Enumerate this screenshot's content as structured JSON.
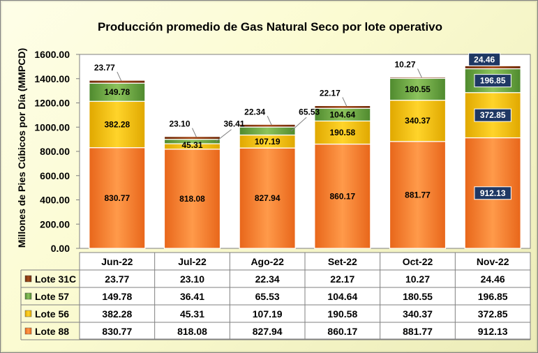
{
  "chart_data": {
    "type": "bar",
    "stacked": true,
    "title": "Producción promedio de Gas Natural Seco por lote operativo",
    "ylabel": "Millones de Pies Cúbicos por Día (MMPCD)",
    "xlabel": "",
    "ylim": [
      0,
      1600
    ],
    "yticks": [
      "0.00",
      "200.00",
      "400.00",
      "600.00",
      "800.00",
      "1000.00",
      "1200.00",
      "1400.00",
      "1600.00"
    ],
    "categories": [
      "Jun-22",
      "Jul-22",
      "Ago-22",
      "Set-22",
      "Oct-22",
      "Nov-22"
    ],
    "series": [
      {
        "name": "Lote 88",
        "color": "#f47f2f",
        "values": [
          830.77,
          818.08,
          827.94,
          860.17,
          881.77,
          912.13
        ],
        "labels": [
          "830.77",
          "818.08",
          "827.94",
          "860.17",
          "881.77",
          "912.13"
        ]
      },
      {
        "name": "Lote 56",
        "color": "#ffc000",
        "values": [
          382.28,
          45.31,
          107.19,
          190.58,
          340.37,
          372.85
        ],
        "labels": [
          "382.28",
          "45.31",
          "107.19",
          "190.58",
          "340.37",
          "372.85"
        ]
      },
      {
        "name": "Lote 57",
        "color": "#70ad47",
        "values": [
          149.78,
          36.41,
          65.53,
          104.64,
          180.55,
          196.85
        ],
        "labels": [
          "149.78",
          "36.41",
          "65.53",
          "104.64",
          "180.55",
          "196.85"
        ]
      },
      {
        "name": "Lote 31C",
        "color": "#8b3a0f",
        "values": [
          23.77,
          23.1,
          22.34,
          22.17,
          10.27,
          24.46
        ],
        "labels": [
          "23.77",
          "23.10",
          "22.34",
          "22.17",
          "10.27",
          "24.46"
        ]
      }
    ],
    "table_order": [
      "Lote 31C",
      "Lote 57",
      "Lote 56",
      "Lote 88"
    ]
  }
}
